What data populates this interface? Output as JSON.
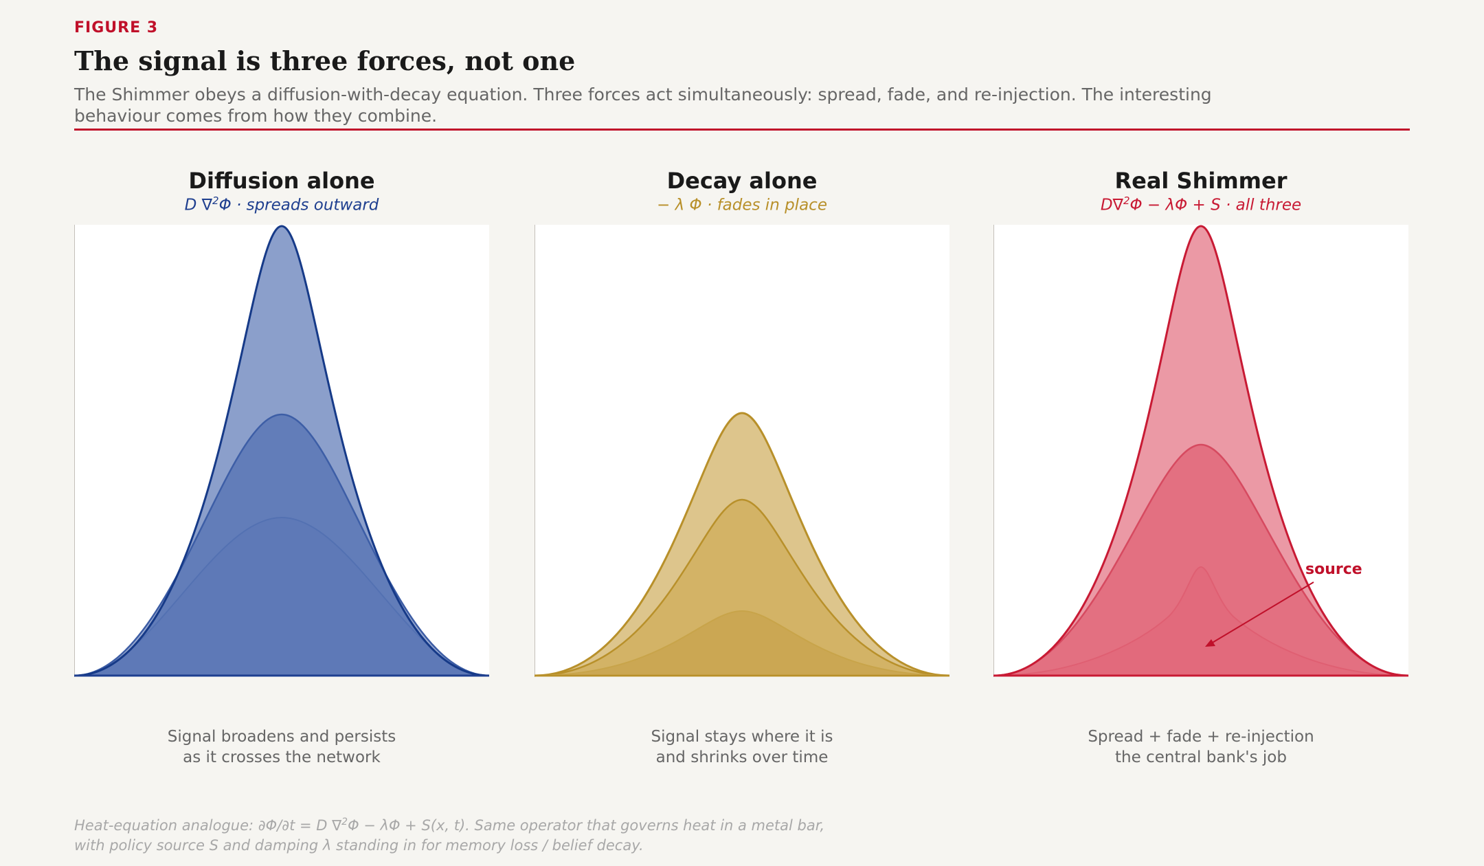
{
  "header": {
    "figure_label": "FIGURE 3",
    "title": "The signal is three forces, not one",
    "subtitle": "The Shimmer obeys a diffusion-with-decay equation. Three forces act simultaneously: spread, fade, and re-injection. The interesting behaviour comes from how they combine."
  },
  "panels": [
    {
      "title": "Diffusion alone",
      "equation_prefix": "D ∇",
      "equation_sup": "2",
      "equation_suffix": "Φ  ·  spreads outward",
      "caption_line1": "Signal broadens and persists",
      "caption_line2": "as it crosses the network",
      "color": "#1f3f8f"
    },
    {
      "title": "Decay alone",
      "equation_prefix": "− λ Φ  ·  fades in place",
      "equation_sup": "",
      "equation_suffix": "",
      "caption_line1": "Signal stays where it is",
      "caption_line2": "and shrinks over time",
      "color": "#b8902a"
    },
    {
      "title": "Real Shimmer",
      "equation_prefix": "D∇",
      "equation_sup": "2",
      "equation_suffix": "Φ − λΦ + S  ·  all three",
      "caption_line1": "Spread + fade + re-injection",
      "caption_line2": "the central bank's job",
      "color": "#c81a34",
      "annotation": "source"
    }
  ],
  "footnote": {
    "line1_prefix": "Heat-equation analogue: ∂Φ/∂t = D ∇",
    "line1_sup": "2",
    "line1_suffix": "Φ − λΦ + S(x, t). Same operator that governs heat in a metal bar,",
    "line2": "with policy source S and damping λ standing in for memory loss / belief decay."
  }
}
